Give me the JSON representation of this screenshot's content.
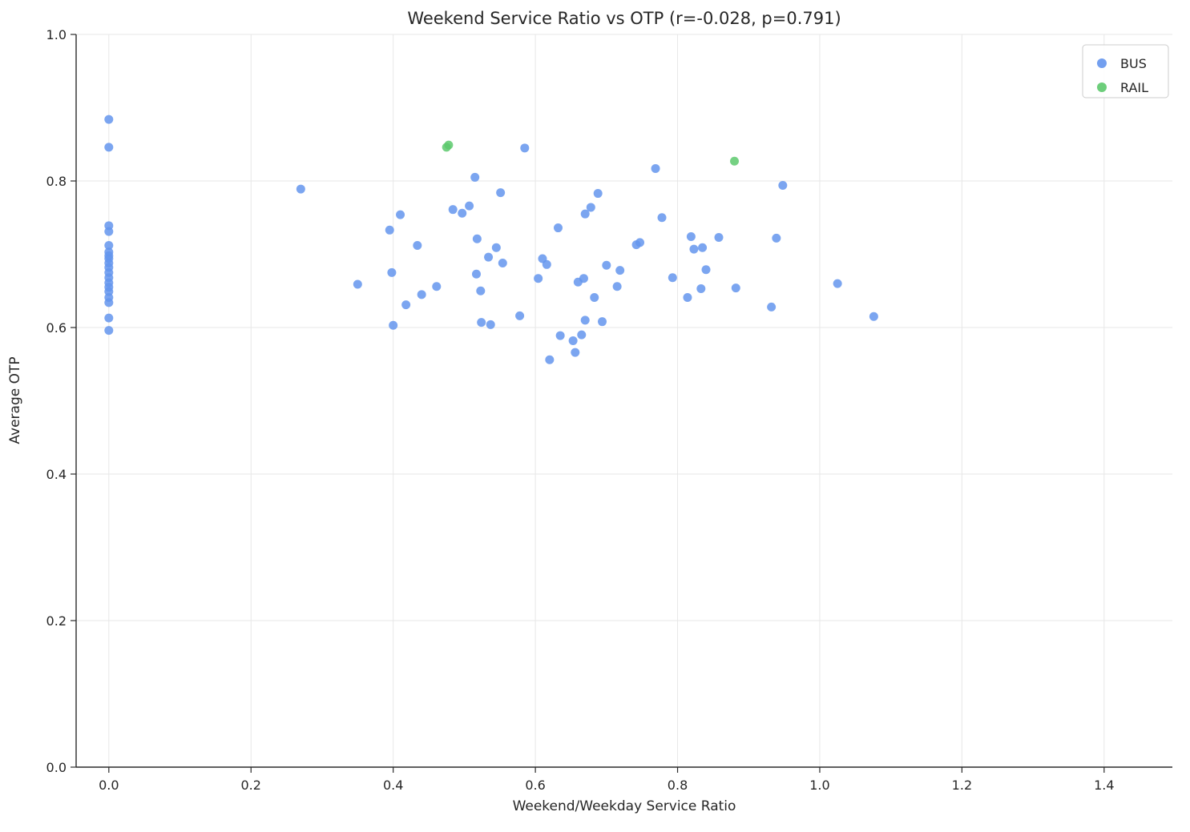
{
  "chart_data": {
    "type": "scatter",
    "title": "Weekend Service Ratio vs OTP (r=-0.028, p=0.791)",
    "xlabel": "Weekend/Weekday Service Ratio",
    "ylabel": "Average OTP",
    "xlim": [
      -0.046,
      1.496
    ],
    "ylim": [
      0.0,
      1.0
    ],
    "x_ticks": [
      0.0,
      0.2,
      0.4,
      0.6,
      0.8,
      1.0,
      1.2,
      1.4
    ],
    "y_ticks": [
      0.0,
      0.2,
      0.4,
      0.6,
      0.8,
      1.0
    ],
    "grid": true,
    "legend_position": "upper right",
    "marker_radius": 5.5,
    "series": [
      {
        "name": "BUS",
        "color": "#6495ed",
        "points": [
          [
            0.0,
            0.884
          ],
          [
            0.0,
            0.846
          ],
          [
            0.0,
            0.739
          ],
          [
            0.0,
            0.731
          ],
          [
            0.0,
            0.712
          ],
          [
            0.0,
            0.703
          ],
          [
            0.0,
            0.698
          ],
          [
            0.0,
            0.694
          ],
          [
            0.0,
            0.688
          ],
          [
            0.0,
            0.682
          ],
          [
            0.0,
            0.675
          ],
          [
            0.0,
            0.668
          ],
          [
            0.0,
            0.661
          ],
          [
            0.0,
            0.655
          ],
          [
            0.0,
            0.649
          ],
          [
            0.0,
            0.641
          ],
          [
            0.0,
            0.634
          ],
          [
            0.0,
            0.613
          ],
          [
            0.0,
            0.596
          ],
          [
            0.27,
            0.789
          ],
          [
            0.35,
            0.659
          ],
          [
            0.395,
            0.733
          ],
          [
            0.398,
            0.675
          ],
          [
            0.4,
            0.603
          ],
          [
            0.41,
            0.754
          ],
          [
            0.418,
            0.631
          ],
          [
            0.434,
            0.712
          ],
          [
            0.44,
            0.645
          ],
          [
            0.461,
            0.656
          ],
          [
            0.484,
            0.761
          ],
          [
            0.497,
            0.756
          ],
          [
            0.507,
            0.766
          ],
          [
            0.515,
            0.805
          ],
          [
            0.518,
            0.721
          ],
          [
            0.517,
            0.673
          ],
          [
            0.523,
            0.65
          ],
          [
            0.524,
            0.607
          ],
          [
            0.534,
            0.696
          ],
          [
            0.537,
            0.604
          ],
          [
            0.545,
            0.709
          ],
          [
            0.551,
            0.784
          ],
          [
            0.554,
            0.688
          ],
          [
            0.578,
            0.616
          ],
          [
            0.585,
            0.845
          ],
          [
            0.604,
            0.667
          ],
          [
            0.61,
            0.694
          ],
          [
            0.616,
            0.686
          ],
          [
            0.62,
            0.556
          ],
          [
            0.632,
            0.736
          ],
          [
            0.635,
            0.589
          ],
          [
            0.653,
            0.582
          ],
          [
            0.656,
            0.566
          ],
          [
            0.66,
            0.662
          ],
          [
            0.665,
            0.59
          ],
          [
            0.668,
            0.667
          ],
          [
            0.67,
            0.61
          ],
          [
            0.67,
            0.755
          ],
          [
            0.678,
            0.764
          ],
          [
            0.683,
            0.641
          ],
          [
            0.688,
            0.783
          ],
          [
            0.694,
            0.608
          ],
          [
            0.7,
            0.685
          ],
          [
            0.715,
            0.656
          ],
          [
            0.719,
            0.678
          ],
          [
            0.742,
            0.713
          ],
          [
            0.747,
            0.716
          ],
          [
            0.769,
            0.817
          ],
          [
            0.778,
            0.75
          ],
          [
            0.793,
            0.668
          ],
          [
            0.814,
            0.641
          ],
          [
            0.819,
            0.724
          ],
          [
            0.823,
            0.707
          ],
          [
            0.833,
            0.653
          ],
          [
            0.835,
            0.709
          ],
          [
            0.84,
            0.679
          ],
          [
            0.858,
            0.723
          ],
          [
            0.882,
            0.654
          ],
          [
            0.932,
            0.628
          ],
          [
            0.939,
            0.722
          ],
          [
            0.948,
            0.794
          ],
          [
            1.025,
            0.66
          ],
          [
            1.076,
            0.615
          ]
        ]
      },
      {
        "name": "RAIL",
        "color": "#5dc96d",
        "points": [
          [
            0.475,
            0.846
          ],
          [
            0.478,
            0.849
          ],
          [
            0.88,
            0.827
          ]
        ]
      }
    ]
  }
}
